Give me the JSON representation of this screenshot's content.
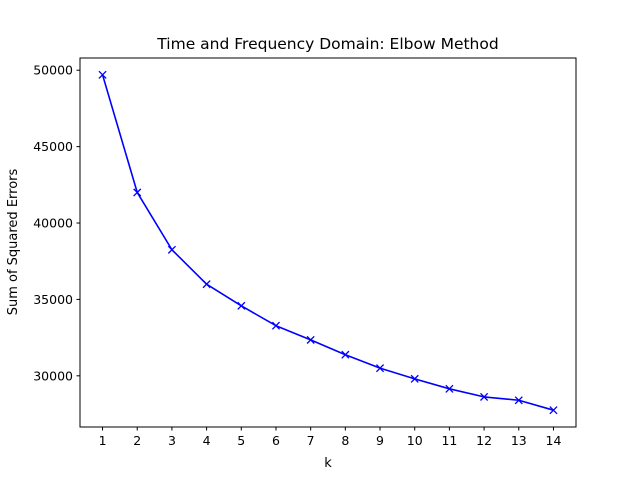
{
  "chart_data": {
    "type": "line",
    "title": "Time and Frequency Domain: Elbow Method",
    "xlabel": "k",
    "ylabel": "Sum of Squared Errors",
    "x": [
      1,
      2,
      3,
      4,
      5,
      6,
      7,
      8,
      9,
      10,
      11,
      12,
      13,
      14
    ],
    "series": [
      {
        "values": [
          49700,
          42000,
          38250,
          36000,
          34580,
          33280,
          32350,
          31380,
          30500,
          29800,
          29150,
          28620,
          28400,
          27750
        ],
        "color": "#0000ff",
        "marker": "x"
      }
    ],
    "xticks": [
      "1",
      "2",
      "3",
      "4",
      "5",
      "6",
      "7",
      "8",
      "9",
      "10",
      "11",
      "12",
      "13",
      "14"
    ],
    "yticks": [
      "30000",
      "35000",
      "40000",
      "45000",
      "50000"
    ],
    "xlim": [
      0.35,
      14.65
    ],
    "ylim": [
      26650,
      50800
    ],
    "grid": false
  }
}
